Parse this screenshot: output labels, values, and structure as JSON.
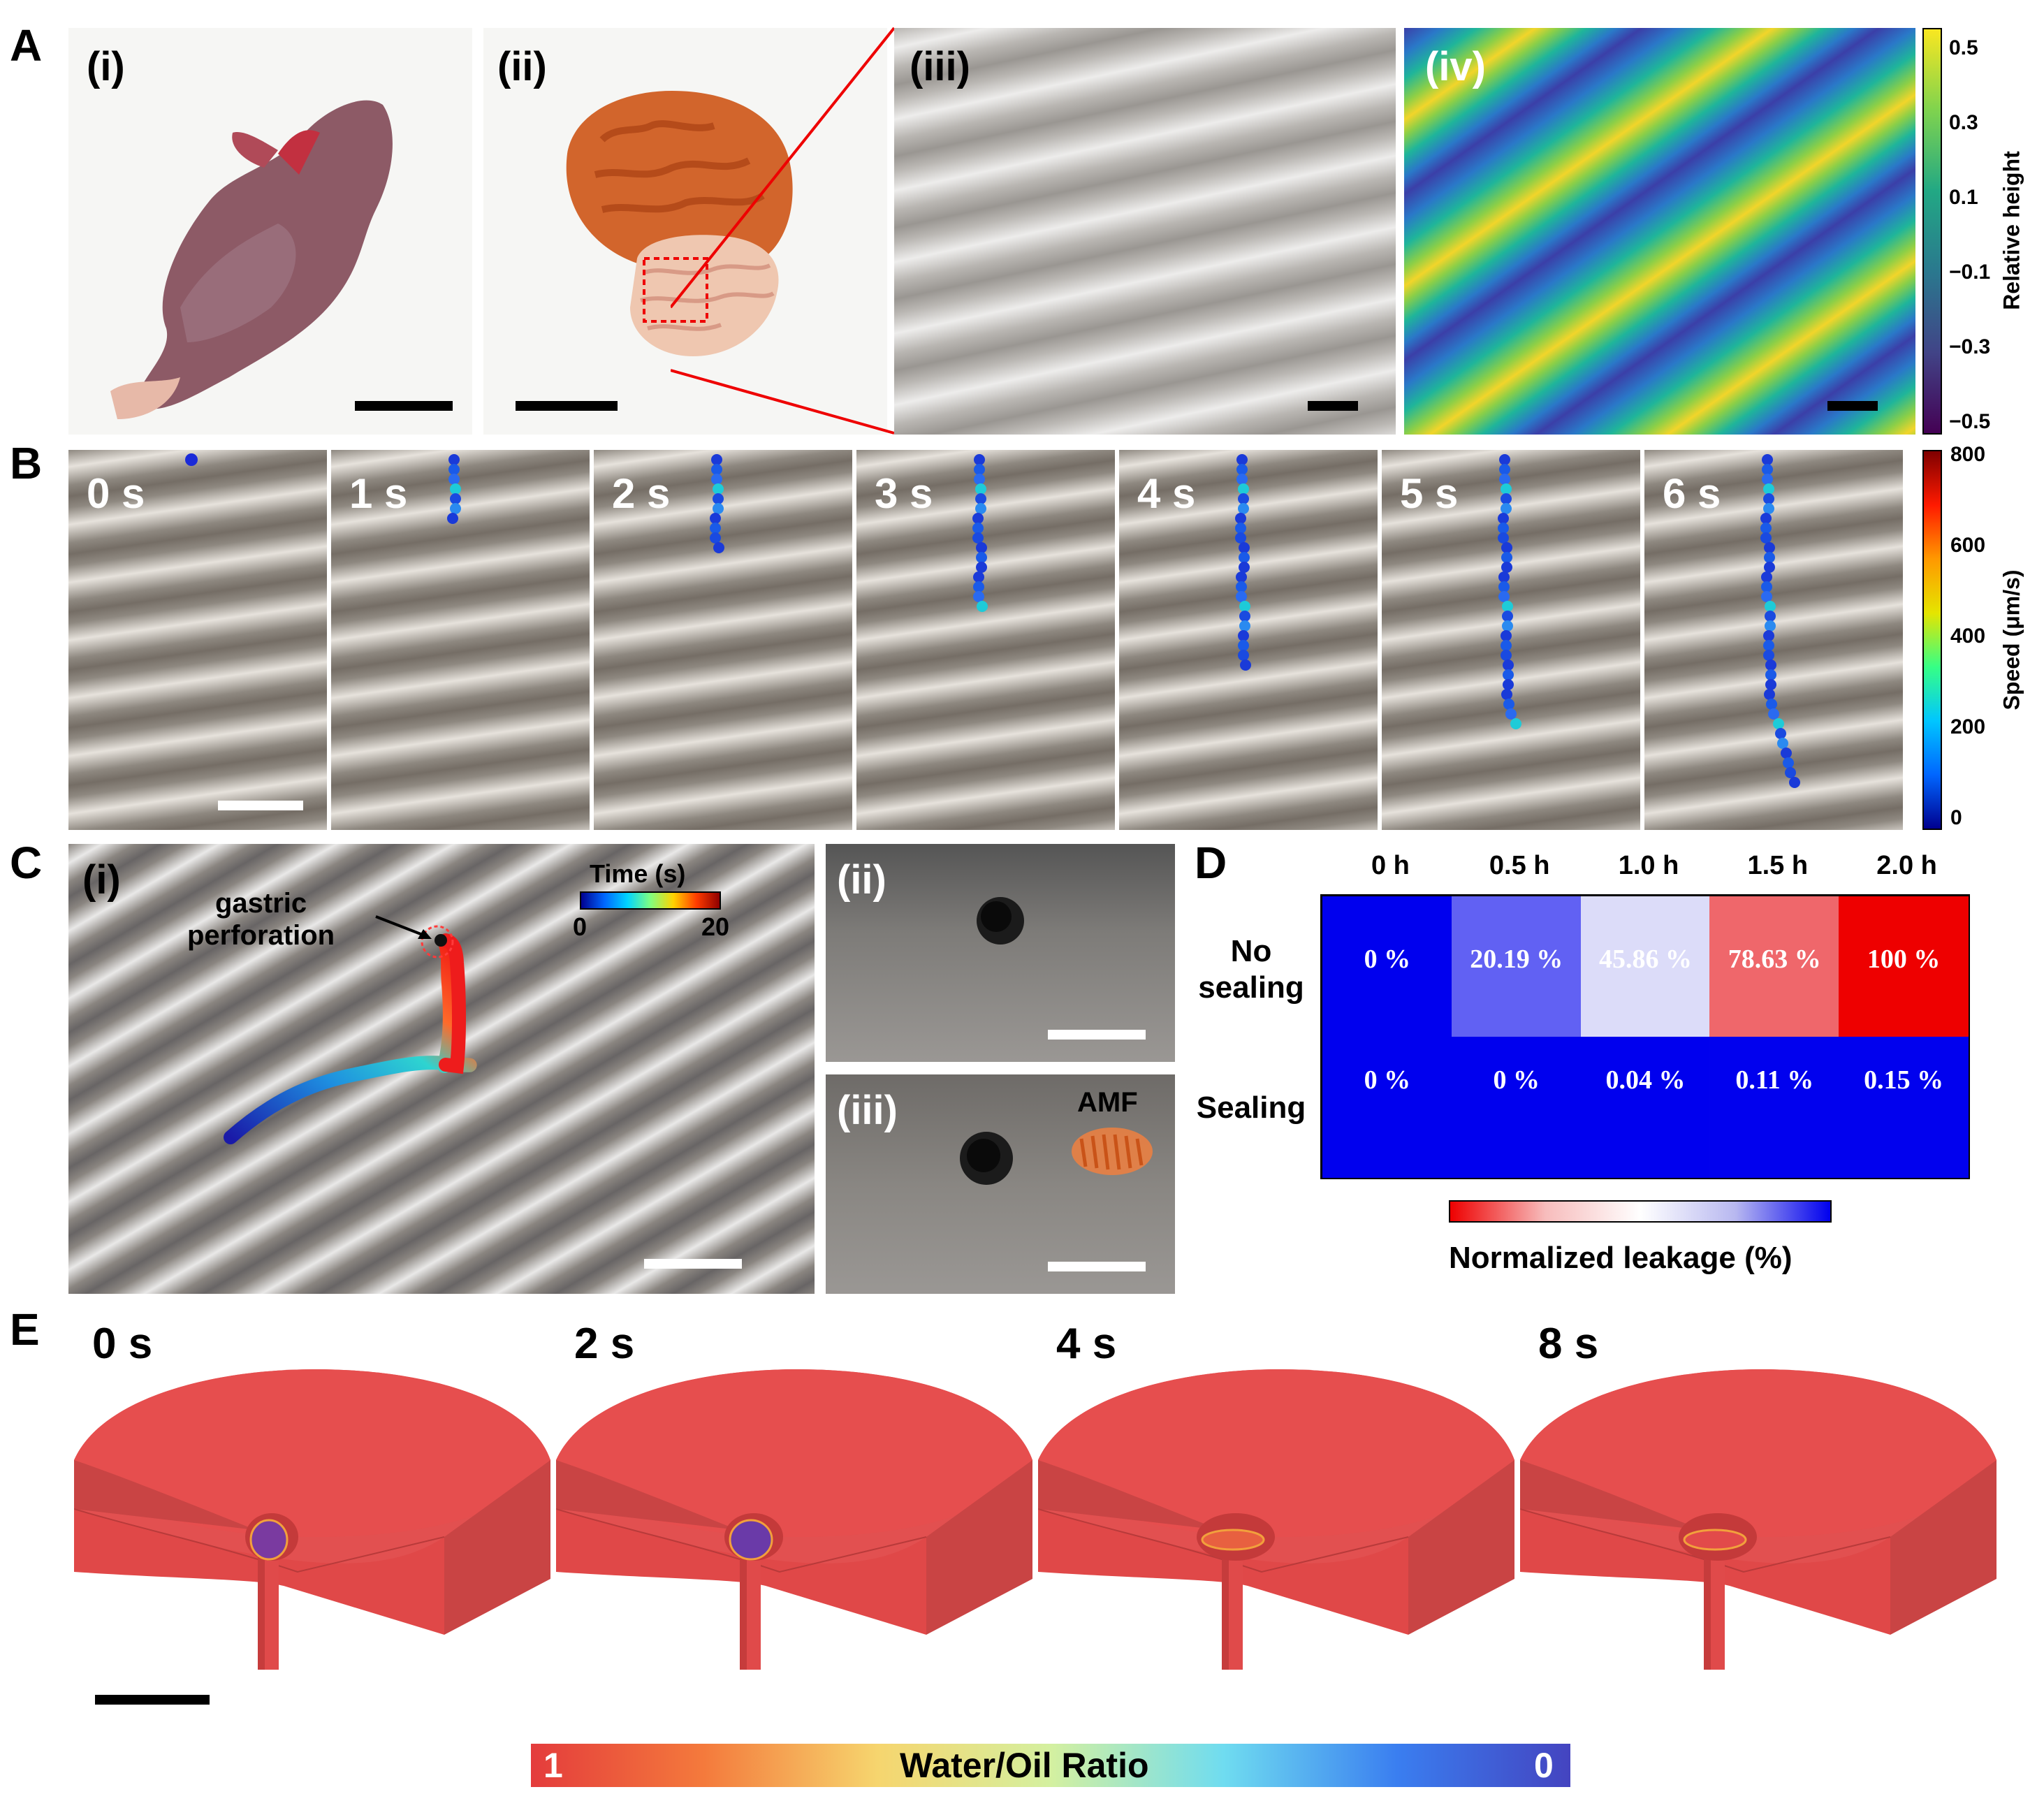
{
  "colors": {
    "red": "#ee0000",
    "blue": "#0000ee",
    "sim_red": "#e25050",
    "scale_white": "#ffffff"
  },
  "panel_a": {
    "letter": "A",
    "sub_labels": [
      "(i)",
      "(ii)",
      "(iii)",
      "(iv)"
    ],
    "colorbar": {
      "title": "Relative height",
      "ticks": [
        "0.5",
        "0.3",
        "0.1",
        "−0.1",
        "−0.3",
        "−0.5"
      ]
    }
  },
  "panel_b": {
    "letter": "B",
    "frames": [
      "0 s",
      "1 s",
      "2 s",
      "3 s",
      "4 s",
      "5 s",
      "6 s"
    ],
    "track_lengths": [
      0,
      2,
      3,
      5,
      7,
      9,
      11
    ],
    "colorbar": {
      "title": "Speed (μm/s)",
      "ticks": [
        "800",
        "600",
        "400",
        "200",
        "0"
      ]
    }
  },
  "panel_c": {
    "letter": "C",
    "sub_labels": [
      "(i)",
      "(ii)",
      "(iii)"
    ],
    "annotation": "gastric\nperforation",
    "colorbar": {
      "title": "Time (s)",
      "min": "0",
      "max": "20"
    },
    "amf_label": "AMF"
  },
  "panel_d": {
    "letter": "D",
    "columns": [
      "0 h",
      "0.5 h",
      "1.0 h",
      "1.5 h",
      "2.0 h"
    ],
    "rows": [
      "No\nsealing",
      "Sealing"
    ],
    "chart_data": {
      "type": "heatmap",
      "title": "",
      "xlabel": "",
      "ylabel": "",
      "categories": [
        "0 h",
        "0.5 h",
        "1.0 h",
        "1.5 h",
        "2.0 h"
      ],
      "series": [
        {
          "name": "No sealing",
          "values": [
            0,
            20.19,
            45.86,
            78.63,
            100
          ],
          "labels": [
            "0 %",
            "20.19 %",
            "45.86 %",
            "78.63 %",
            "100 %"
          ]
        },
        {
          "name": "Sealing",
          "values": [
            0,
            0,
            0.04,
            0.11,
            0.15
          ],
          "labels": [
            "0 %",
            "0 %",
            "0.04 %",
            "0.11 %",
            "0.15 %"
          ]
        }
      ],
      "colorbar_label": "Normalized leakage (%)",
      "vmin": 0,
      "vmax": 100
    }
  },
  "panel_e": {
    "letter": "E",
    "frames": [
      "0 s",
      "2 s",
      "4 s",
      "8 s"
    ],
    "colorbar": {
      "title": "Water/Oil Ratio",
      "max_label": "1",
      "min_label": "0"
    }
  }
}
